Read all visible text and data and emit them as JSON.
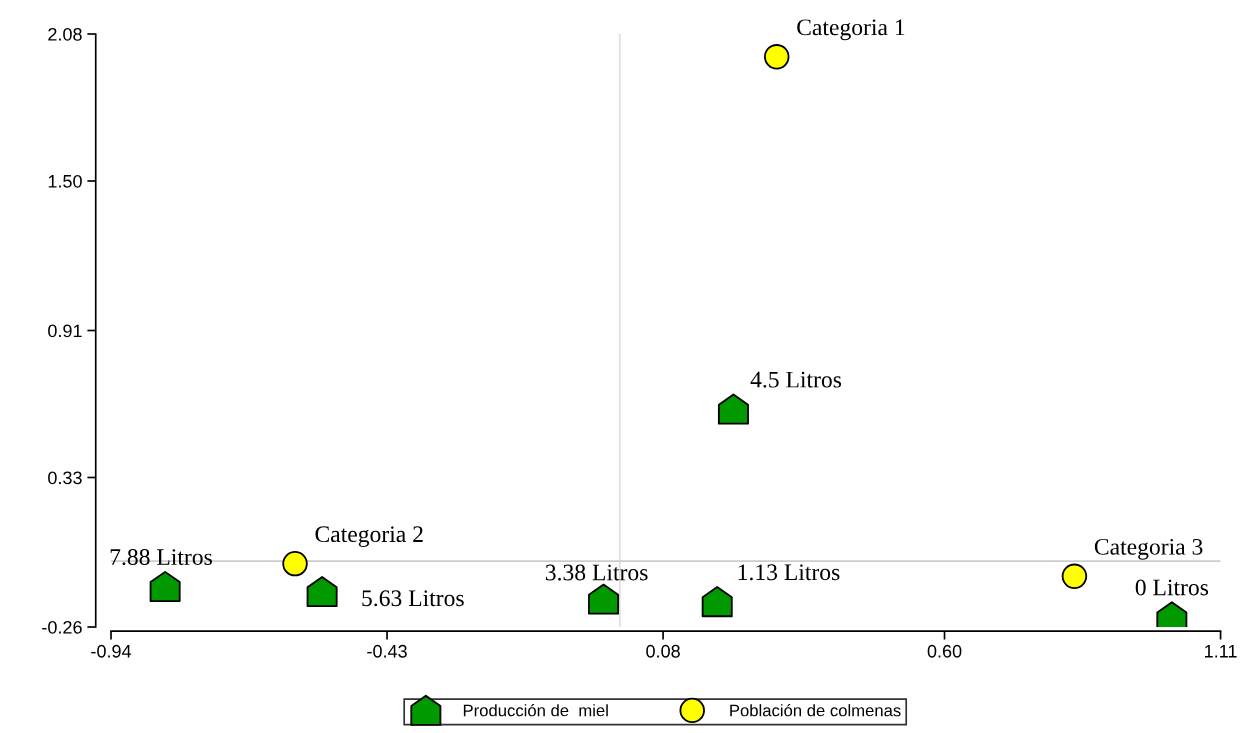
{
  "chart_data": {
    "type": "scatter",
    "xlim": [
      -0.94,
      1.11
    ],
    "ylim": [
      -0.26,
      2.08
    ],
    "xticks": [
      -0.94,
      -0.43,
      {
        "value": 0.08,
        "label": "0.08"
      },
      {
        "value": 0.6,
        "label": "0.60"
      },
      1.11
    ],
    "yticks": [
      2.08,
      {
        "value": 1.5,
        "label": "1.50"
      },
      0.91,
      0.33,
      -0.26
    ],
    "grid": false,
    "legend": "bottom",
    "ref_lines": [
      {
        "axis": "x",
        "value": 0,
        "color": "#dddddd"
      },
      {
        "axis": "y",
        "value": 0,
        "color": "#cccccc"
      }
    ],
    "series": [
      {
        "name": "Producción de  miel",
        "color": "#009900",
        "x": [
          -0.84,
          -0.55,
          -0.03,
          0.18,
          1.02,
          0.21
        ],
        "values": [
          -0.1,
          -0.12,
          -0.15,
          -0.16,
          -0.22,
          0.6
        ]
      },
      {
        "name": "Población de colmenas",
        "color": "#ffff00",
        "marker": "circle",
        "x": [
          0.29,
          -0.6,
          0.84
        ],
        "values": [
          1.99,
          -0.01,
          -0.06
        ]
      }
    ],
    "annotations": [
      {
        "text": "7.88 Litros",
        "x": -0.84,
        "y": -0.1
      },
      {
        "text": "5.63 Litros",
        "x": -0.55,
        "y": -0.12
      },
      {
        "text": "3.38 Litros",
        "x": -0.03,
        "y": -0.15
      },
      {
        "text": "1.13 Litros",
        "x": 0.18,
        "y": -0.16
      },
      {
        "text": "0 Litros",
        "x": 1.02,
        "y": -0.22
      },
      {
        "text": "4.5 Litros",
        "x": 0.21,
        "y": 0.6
      },
      {
        "text": "Categoria 1",
        "x": 0.29,
        "y": 1.99
      },
      {
        "text": "Categoria 2",
        "x": -0.6,
        "y": -0.01
      },
      {
        "text": "Categoria 3",
        "x": 0.84,
        "y": -0.06
      }
    ]
  }
}
